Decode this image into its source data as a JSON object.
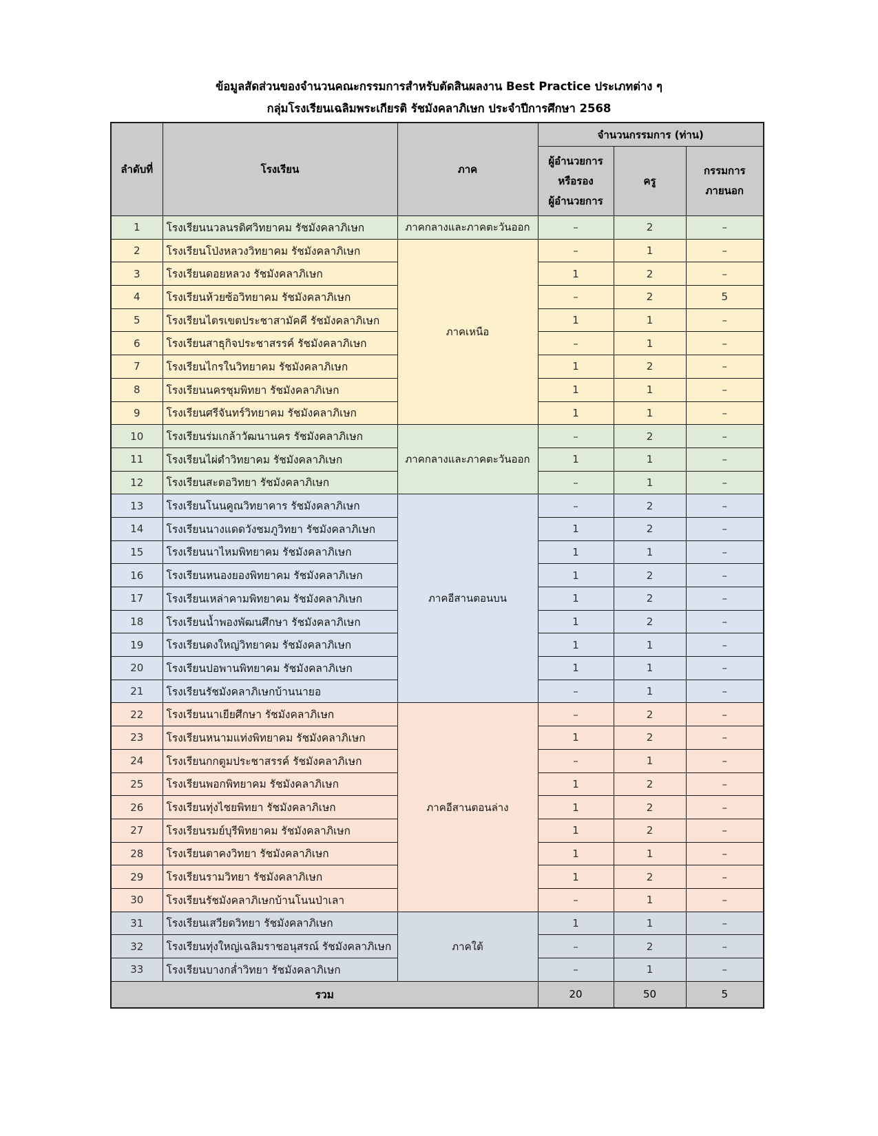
{
  "page": {
    "title_line1": "ข้อมูลสัดส่วนของจำนวนคณะกรรมการสำหรับตัดสินผลงาน Best Practice ประเภทต่าง ๆ",
    "title_line2": "กลุ่มโรงเรียนเฉลิมพระเกียรติ รัชมังคลาภิเษก ประจำปีการศึกษา 2568"
  },
  "colors": {
    "header_bg": "#cbcbcb",
    "total_bg": "#cbcbcb",
    "border": "#1b1b1b",
    "groups": {
      "central_east_1": "#dfead7",
      "north": "#fdf0cc",
      "central_east_2": "#dfead7",
      "northeast_upper": "#dae4f0",
      "northeast_lower": "#fbe4d5",
      "south": "#d6dce4"
    }
  },
  "table": {
    "headers": {
      "no": "ลำดับที่",
      "school": "โรงเรียน",
      "region": "ภาค",
      "committee_group": "จำนวนกรรมการ (ท่าน)",
      "director": "ผู้อำนวยการ\nหรือรอง\nผู้อำนวยการ",
      "teacher": "ครู",
      "external": "กรรมการ\nภายนอก"
    },
    "rows": [
      {
        "no": "1",
        "school": "โรงเรียนนวลนรดิศวิทยาคม รัชมังคลาภิเษก",
        "group": "central_east_1",
        "region": "ภาคกลางและภาคตะวันออก",
        "span": 1,
        "d": "–",
        "t": "2",
        "e": "–"
      },
      {
        "no": "2",
        "school": "โรงเรียนโป่งหลวงวิทยาคม รัชมังคลาภิเษก",
        "group": "north",
        "region": "ภาคเหนือ",
        "span": 8,
        "d": "–",
        "t": "1",
        "e": "–"
      },
      {
        "no": "3",
        "school": "โรงเรียนดอยหลวง รัชมังคลาภิเษก",
        "group": "north",
        "d": "1",
        "t": "2",
        "e": "–"
      },
      {
        "no": "4",
        "school": "โรงเรียนห้วยซ้อวิทยาคม รัชมังคลาภิเษก",
        "group": "north",
        "d": "–",
        "t": "2",
        "e": "5"
      },
      {
        "no": "5",
        "school": "โรงเรียนไตรเขตประชาสามัคคี รัชมังคลาภิเษก",
        "group": "north",
        "d": "1",
        "t": "1",
        "e": "–"
      },
      {
        "no": "6",
        "school": "โรงเรียนสาธุกิจประชาสรรค์ รัชมังคลาภิเษก",
        "group": "north",
        "d": "–",
        "t": "1",
        "e": "–"
      },
      {
        "no": "7",
        "school": "โรงเรียนไกรในวิทยาคม รัชมังคลาภิเษก",
        "group": "north",
        "d": "1",
        "t": "2",
        "e": "–"
      },
      {
        "no": "8",
        "school": "โรงเรียนนครชุมพิทยา รัชมังคลาภิเษก",
        "group": "north",
        "d": "1",
        "t": "1",
        "e": "–"
      },
      {
        "no": "9",
        "school": "โรงเรียนศรีจันทร์วิทยาคม รัชมังคลาภิเษก",
        "group": "north",
        "d": "1",
        "t": "1",
        "e": "–"
      },
      {
        "no": "10",
        "school": "โรงเรียนร่มเกล้าวัฒนานคร รัชมังคลาภิเษก",
        "group": "central_east_2",
        "region": "ภาคกลางและภาคตะวันออก",
        "span": 3,
        "d": "–",
        "t": "2",
        "e": "–"
      },
      {
        "no": "11",
        "school": "โรงเรียนไผ่ดำวิทยาคม รัชมังคลาภิเษก",
        "group": "central_east_2",
        "d": "1",
        "t": "1",
        "e": "–"
      },
      {
        "no": "12",
        "school": "โรงเรียนสะตอวิทยา รัชมังคลาภิเษก",
        "group": "central_east_2",
        "d": "–",
        "t": "1",
        "e": "–"
      },
      {
        "no": "13",
        "school": "โรงเรียนโนนคูณวิทยาคาร รัชมังคลาภิเษก",
        "group": "northeast_upper",
        "region": "ภาคอีสานตอนบน",
        "span": 9,
        "d": "–",
        "t": "2",
        "e": "–"
      },
      {
        "no": "14",
        "school": "โรงเรียนนางแดดวังชมภูวิทยา รัชมังคลาภิเษก",
        "group": "northeast_upper",
        "d": "1",
        "t": "2",
        "e": "–"
      },
      {
        "no": "15",
        "school": "โรงเรียนนาไหมพิทยาคม รัชมังคลาภิเษก",
        "group": "northeast_upper",
        "d": "1",
        "t": "1",
        "e": "–"
      },
      {
        "no": "16",
        "school": "โรงเรียนหนองยองพิทยาคม รัชมังคลาภิเษก",
        "group": "northeast_upper",
        "d": "1",
        "t": "2",
        "e": "–"
      },
      {
        "no": "17",
        "school": "โรงเรียนเหล่าคามพิทยาคม รัชมังคลาภิเษก",
        "group": "northeast_upper",
        "d": "1",
        "t": "2",
        "e": "–"
      },
      {
        "no": "18",
        "school": "โรงเรียนน้ำพองพัฒนศึกษา รัชมังคลาภิเษก",
        "group": "northeast_upper",
        "d": "1",
        "t": "2",
        "e": "–"
      },
      {
        "no": "19",
        "school": "โรงเรียนดงใหญ่วิทยาคม รัชมังคลาภิเษก",
        "group": "northeast_upper",
        "d": "1",
        "t": "1",
        "e": "–"
      },
      {
        "no": "20",
        "school": "โรงเรียนปอพานพิทยาคม รัชมังคลาภิเษก",
        "group": "northeast_upper",
        "d": "1",
        "t": "1",
        "e": "–"
      },
      {
        "no": "21",
        "school": "โรงเรียนรัชมังคลาภิเษกบ้านนายอ",
        "group": "northeast_upper",
        "d": "–",
        "t": "1",
        "e": "–"
      },
      {
        "no": "22",
        "school": "โรงเรียนนาเยียศึกษา รัชมังคลาภิเษก",
        "group": "northeast_lower",
        "region": "ภาคอีสานตอนล่าง",
        "span": 9,
        "d": "–",
        "t": "2",
        "e": "–"
      },
      {
        "no": "23",
        "school": "โรงเรียนหนามแท่งพิทยาคม รัชมังคลาภิเษก",
        "group": "northeast_lower",
        "d": "1",
        "t": "2",
        "e": "–"
      },
      {
        "no": "24",
        "school": "โรงเรียนกกตูมประชาสรรค์ รัชมังคลาภิเษก",
        "group": "northeast_lower",
        "d": "–",
        "t": "1",
        "e": "–"
      },
      {
        "no": "25",
        "school": "โรงเรียนพอกพิทยาคม รัชมังคลาภิเษก",
        "group": "northeast_lower",
        "d": "1",
        "t": "2",
        "e": "–"
      },
      {
        "no": "26",
        "school": "โรงเรียนทุ่งไชยพิทยา รัชมังคลาภิเษก",
        "group": "northeast_lower",
        "d": "1",
        "t": "2",
        "e": "–"
      },
      {
        "no": "27",
        "school": "โรงเรียนรมย์บุรีพิทยาคม รัชมังคลาภิเษก",
        "group": "northeast_lower",
        "d": "1",
        "t": "2",
        "e": "–"
      },
      {
        "no": "28",
        "school": "โรงเรียนตาคงวิทยา รัชมังคลาภิเษก",
        "group": "northeast_lower",
        "d": "1",
        "t": "1",
        "e": "–"
      },
      {
        "no": "29",
        "school": "โรงเรียนรามวิทยา รัชมังคลาภิเษก",
        "group": "northeast_lower",
        "d": "1",
        "t": "2",
        "e": "–"
      },
      {
        "no": "30",
        "school": "โรงเรียนรัชมังคลาภิเษกบ้านโนนป่าเลา",
        "group": "northeast_lower",
        "d": "–",
        "t": "1",
        "e": "–"
      },
      {
        "no": "31",
        "school": "โรงเรียนเสวียดวิทยา รัชมังคลาภิเษก",
        "group": "south",
        "region": "ภาคใต้",
        "span": 3,
        "d": "1",
        "t": "1",
        "e": "–"
      },
      {
        "no": "32",
        "school": "โรงเรียนทุ่งใหญ่เฉลิมราชอนุสรณ์ รัชมังคลาภิเษก",
        "group": "south",
        "d": "–",
        "t": "2",
        "e": "–"
      },
      {
        "no": "33",
        "school": "โรงเรียนบางกล่ำวิทยา รัชมังคลาภิเษก",
        "group": "south",
        "d": "–",
        "t": "1",
        "e": "–"
      }
    ],
    "total": {
      "label": "รวม",
      "director": "20",
      "teacher": "50",
      "external": "5"
    }
  }
}
